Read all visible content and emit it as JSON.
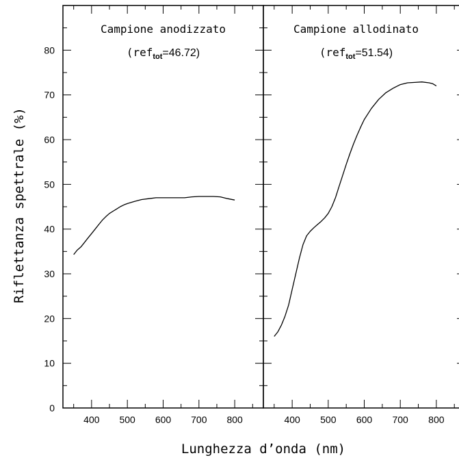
{
  "chart_data": [
    {
      "type": "line",
      "panel": "left",
      "title": "Campione anodizzato",
      "ref_prefix": "(ref",
      "ref_sub": "tot",
      "ref_value": "=46.72)",
      "xlim": [
        320,
        880
      ],
      "ylim": [
        0,
        90
      ],
      "xticks": [
        400,
        500,
        600,
        700,
        800
      ],
      "series": [
        {
          "x": [
            350,
            360,
            370,
            380,
            390,
            400,
            410,
            420,
            430,
            440,
            450,
            460,
            470,
            480,
            490,
            500,
            520,
            540,
            560,
            580,
            600,
            620,
            640,
            660,
            680,
            700,
            720,
            740,
            760,
            780,
            800
          ],
          "y": [
            34.3,
            35.3,
            36.0,
            37.0,
            38.0,
            39.0,
            40.0,
            41.0,
            42.0,
            42.8,
            43.5,
            44.0,
            44.5,
            45.0,
            45.4,
            45.7,
            46.2,
            46.6,
            46.8,
            47.0,
            47.0,
            47.0,
            47.0,
            47.0,
            47.2,
            47.3,
            47.3,
            47.3,
            47.2,
            46.8,
            46.5
          ]
        }
      ]
    },
    {
      "type": "line",
      "panel": "right",
      "title": "Campione allodinato",
      "ref_prefix": "(ref",
      "ref_sub": "tot",
      "ref_value": "=51.54)",
      "xlim": [
        320,
        880
      ],
      "ylim": [
        0,
        90
      ],
      "xticks": [
        400,
        500,
        600,
        700,
        800
      ],
      "series": [
        {
          "x": [
            350,
            360,
            370,
            380,
            390,
            400,
            410,
            420,
            430,
            440,
            450,
            460,
            470,
            480,
            490,
            500,
            510,
            520,
            530,
            540,
            550,
            560,
            570,
            580,
            590,
            600,
            620,
            640,
            660,
            680,
            700,
            720,
            740,
            760,
            780,
            790,
            800
          ],
          "y": [
            16.0,
            17.0,
            18.5,
            20.5,
            23.0,
            26.5,
            30.0,
            33.5,
            36.5,
            38.5,
            39.5,
            40.3,
            41.0,
            41.7,
            42.5,
            43.5,
            45.0,
            47.0,
            49.5,
            52.0,
            54.5,
            56.8,
            59.0,
            61.0,
            62.8,
            64.5,
            67.0,
            69.0,
            70.5,
            71.5,
            72.3,
            72.7,
            72.8,
            72.9,
            72.7,
            72.5,
            72.0
          ]
        }
      ]
    }
  ],
  "y_axis": {
    "label": "Riflettanza spettrale (%)",
    "ticks": [
      0,
      10,
      20,
      30,
      40,
      50,
      60,
      70,
      80
    ]
  },
  "x_axis": {
    "label": "Lunghezza d’onda (nm)"
  }
}
